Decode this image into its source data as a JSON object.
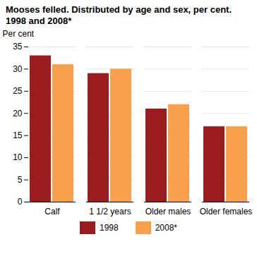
{
  "chart_data": {
    "type": "bar",
    "title": "Mooses felled. Distributed by age and sex, per cent. 1998 and 2008*",
    "y_label": "Per cent",
    "categories": [
      "Calf",
      "1 1/2 years",
      "Older males",
      "Older females"
    ],
    "series": [
      {
        "name": "1998",
        "color": "#9b1c1f",
        "values": [
          33,
          29,
          21,
          17
        ]
      },
      {
        "name": "2008*",
        "color": "#f8a04c",
        "values": [
          31,
          30,
          22,
          17
        ]
      }
    ],
    "ylim": [
      0,
      35
    ],
    "yticks": [
      0,
      5,
      10,
      15,
      20,
      25,
      30,
      35
    ],
    "grid": true,
    "legend": "bottom"
  }
}
